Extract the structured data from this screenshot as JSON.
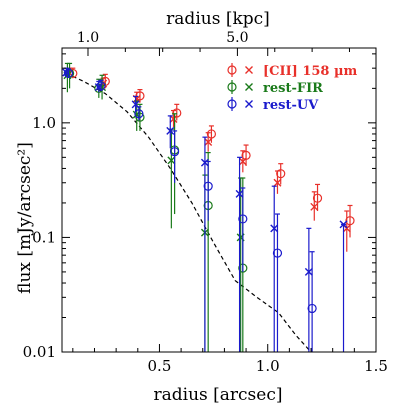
{
  "chart_data": {
    "type": "scatter",
    "title": "",
    "xlabel": "radius  [arcsec]",
    "ylabel": "flux  [mJy/arcsec²]",
    "top_xlabel": "radius  [kpc]",
    "xlim": [
      0.05,
      1.5
    ],
    "ylim": [
      0.01,
      4.5
    ],
    "y_scale": "log",
    "x_ticks": [
      "0.5",
      "1.0",
      "1.5"
    ],
    "y_ticks": [
      "0.01",
      "0.1",
      "1.0"
    ],
    "top_ticks": [
      {
        "label": "1.0",
        "x": 0.17
      },
      {
        "label": "5.0",
        "x": 0.86
      }
    ],
    "grid": false,
    "legend_position": "top-right",
    "series": [
      {
        "name": "[CII]  158 µm",
        "color": "#e8302a",
        "circles": [
          {
            "x": 0.1,
            "y": 2.7,
            "lo": 2.45,
            "hi": 3.0
          },
          {
            "x": 0.25,
            "y": 2.3,
            "lo": 2.0,
            "hi": 2.65
          },
          {
            "x": 0.41,
            "y": 1.72,
            "lo": 1.5,
            "hi": 1.95
          },
          {
            "x": 0.58,
            "y": 1.22,
            "lo": 1.05,
            "hi": 1.45
          },
          {
            "x": 0.74,
            "y": 0.8,
            "lo": 0.67,
            "hi": 0.94
          },
          {
            "x": 0.9,
            "y": 0.52,
            "lo": 0.42,
            "hi": 0.64
          },
          {
            "x": 1.06,
            "y": 0.36,
            "lo": 0.29,
            "hi": 0.44
          },
          {
            "x": 1.23,
            "y": 0.22,
            "lo": 0.17,
            "hi": 0.29
          },
          {
            "x": 1.38,
            "y": 0.14,
            "lo": 0.1,
            "hi": 0.19
          }
        ],
        "crosses": [
          {
            "x": 0.085,
            "y": 2.72,
            "lo": 2.45,
            "hi": 3.0
          },
          {
            "x": 0.24,
            "y": 2.2,
            "lo": 1.95,
            "hi": 2.45
          },
          {
            "x": 0.395,
            "y": 1.62,
            "lo": 1.4,
            "hi": 1.85
          },
          {
            "x": 0.565,
            "y": 1.08,
            "lo": 0.92,
            "hi": 1.28
          },
          {
            "x": 0.725,
            "y": 0.68,
            "lo": 0.56,
            "hi": 0.82
          },
          {
            "x": 0.885,
            "y": 0.46,
            "lo": 0.37,
            "hi": 0.57
          },
          {
            "x": 1.045,
            "y": 0.3,
            "lo": 0.24,
            "hi": 0.38
          },
          {
            "x": 1.215,
            "y": 0.185,
            "lo": 0.14,
            "hi": 0.25
          },
          {
            "x": 1.365,
            "y": 0.12,
            "lo": 0.075,
            "hi": 0.17
          }
        ]
      },
      {
        "name": "rest-FIR",
        "color": "#1a7a1a",
        "circles": [
          {
            "x": 0.085,
            "y": 2.7,
            "lo": 2.0,
            "hi": 3.3
          },
          {
            "x": 0.22,
            "y": 2.0,
            "lo": 1.65,
            "hi": 2.4
          },
          {
            "x": 0.41,
            "y": 1.12,
            "lo": 0.85,
            "hi": 1.45
          },
          {
            "x": 0.57,
            "y": 0.58,
            "lo": 0.16,
            "hi": 1.2
          },
          {
            "x": 0.725,
            "y": 0.19,
            "lo": 0.01,
            "hi": 0.55
          },
          {
            "x": 0.885,
            "y": 0.054,
            "lo": 0.01,
            "hi": 0.33
          }
        ],
        "crosses": [
          {
            "x": 0.075,
            "y": 2.6,
            "lo": 1.85,
            "hi": 3.3
          },
          {
            "x": 0.235,
            "y": 2.05,
            "lo": 1.6,
            "hi": 2.6
          },
          {
            "x": 0.395,
            "y": 1.18,
            "lo": 0.85,
            "hi": 1.55
          },
          {
            "x": 0.555,
            "y": 0.47,
            "lo": 0.12,
            "hi": 0.88
          },
          {
            "x": 0.71,
            "y": 0.11,
            "lo": 0.01,
            "hi": 0.35
          },
          {
            "x": 0.875,
            "y": 0.1,
            "lo": 0.01,
            "hi": 0.33
          }
        ]
      },
      {
        "name": "rest-UV",
        "color": "#1a1acc",
        "circles": [
          {
            "x": 0.08,
            "y": 2.7,
            "lo": 2.5,
            "hi": 2.95
          },
          {
            "x": 0.23,
            "y": 2.1,
            "lo": 1.9,
            "hi": 2.35
          },
          {
            "x": 0.405,
            "y": 1.2,
            "lo": 1.05,
            "hi": 1.38
          },
          {
            "x": 0.57,
            "y": 0.56,
            "lo": 0.3,
            "hi": 0.85
          },
          {
            "x": 0.725,
            "y": 0.28,
            "lo": 0.14,
            "hi": 0.46
          },
          {
            "x": 0.885,
            "y": 0.145,
            "lo": 0.05,
            "hi": 0.27
          },
          {
            "x": 1.045,
            "y": 0.073,
            "lo": 0.01,
            "hi": 0.16
          },
          {
            "x": 1.205,
            "y": 0.024,
            "lo": 0.01,
            "hi": 0.075
          }
        ],
        "crosses": [
          {
            "x": 0.07,
            "y": 2.75,
            "lo": 2.5,
            "hi": 3.0
          },
          {
            "x": 0.22,
            "y": 2.05,
            "lo": 1.85,
            "hi": 2.3
          },
          {
            "x": 0.39,
            "y": 1.45,
            "lo": 1.25,
            "hi": 1.7
          },
          {
            "x": 0.55,
            "y": 0.85,
            "lo": 0.6,
            "hi": 1.15
          },
          {
            "x": 0.71,
            "y": 0.45,
            "lo": 0.01,
            "hi": 0.75
          },
          {
            "x": 0.87,
            "y": 0.24,
            "lo": 0.01,
            "hi": 0.5
          },
          {
            "x": 1.03,
            "y": 0.12,
            "lo": 0.01,
            "hi": 0.28
          },
          {
            "x": 1.19,
            "y": 0.05,
            "lo": 0.01,
            "hi": 0.12
          },
          {
            "x": 1.35,
            "y": 0.13,
            "lo": 0.01,
            "hi": 0.13
          }
        ]
      }
    ],
    "reference_line": {
      "style": "dashed",
      "color": "#000000",
      "x": [
        0.07,
        0.15,
        0.25,
        0.35,
        0.45,
        0.55,
        0.65,
        0.75,
        0.85,
        0.95,
        1.05,
        1.13,
        1.2
      ],
      "y": [
        2.7,
        2.3,
        1.8,
        1.25,
        0.75,
        0.4,
        0.2,
        0.09,
        0.042,
        0.03,
        0.022,
        0.014,
        0.01
      ]
    }
  }
}
